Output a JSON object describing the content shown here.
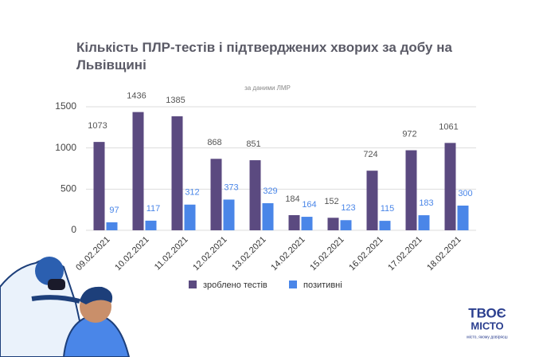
{
  "chart_data": {
    "type": "bar",
    "title": "Кількість ПЛР-тестів і підтверджених хворих за добу на Львівщині",
    "subtitle": "за даними ЛМР",
    "categories": [
      "09.02.2021",
      "10.02.2021",
      "11.02.2021",
      "12.02.2021",
      "13.02.2021",
      "14.02.2021",
      "15.02.2021",
      "16.02.2021",
      "17.02.2021",
      "18.02.2021"
    ],
    "series": [
      {
        "name": "зроблено тестів",
        "color": "#5b4a80",
        "values": [
          1073,
          1436,
          1385,
          868,
          851,
          184,
          152,
          724,
          972,
          1061
        ]
      },
      {
        "name": "позитивні",
        "color": "#4a86e8",
        "values": [
          97,
          117,
          312,
          373,
          329,
          164,
          123,
          115,
          183,
          300
        ]
      }
    ],
    "ylim": [
      0,
      1500
    ],
    "yticks": [
      0,
      500,
      1000,
      1500
    ],
    "grid": true,
    "legend": "bottom"
  },
  "logo": {
    "line1": "ТВОЄ",
    "line2": "МІСТО",
    "tagline": "місто, якому довіряєш"
  }
}
